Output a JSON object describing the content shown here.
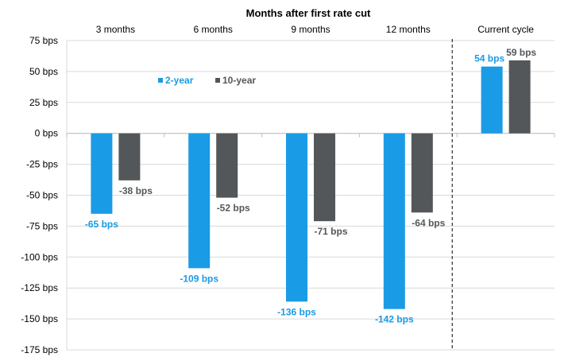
{
  "chart_data": {
    "type": "bar",
    "title": "Months after first rate cut",
    "categories": [
      "3 months",
      "6 months",
      "9 months",
      "12 months",
      "Current cycle"
    ],
    "series": [
      {
        "name": "2-year",
        "color": "#1a9be6",
        "values": [
          -65,
          -109,
          -136,
          -142,
          54
        ],
        "labels": [
          "-65 bps",
          "-109 bps",
          "-136 bps",
          "-142 bps",
          "54 bps"
        ]
      },
      {
        "name": "10-year",
        "color": "#545759",
        "values": [
          -38,
          -52,
          -71,
          -64,
          59
        ],
        "labels": [
          "-38 bps",
          "-52 bps",
          "-71 bps",
          "-64 bps",
          "59 bps"
        ]
      }
    ],
    "ylim": [
      -175,
      75
    ],
    "yticks": [
      75,
      50,
      25,
      0,
      -25,
      -50,
      -75,
      -100,
      -125,
      -150,
      -175
    ],
    "ytick_labels": [
      "75 bps",
      "50 bps",
      "25 bps",
      "0 bps",
      "-25 bps",
      "-50 bps",
      "-75 bps",
      "-100 bps",
      "-125 bps",
      "-150 bps",
      "-175 bps"
    ],
    "grid": true,
    "legend_position": "top-left inside plot",
    "separator_before_category": "Current cycle"
  }
}
